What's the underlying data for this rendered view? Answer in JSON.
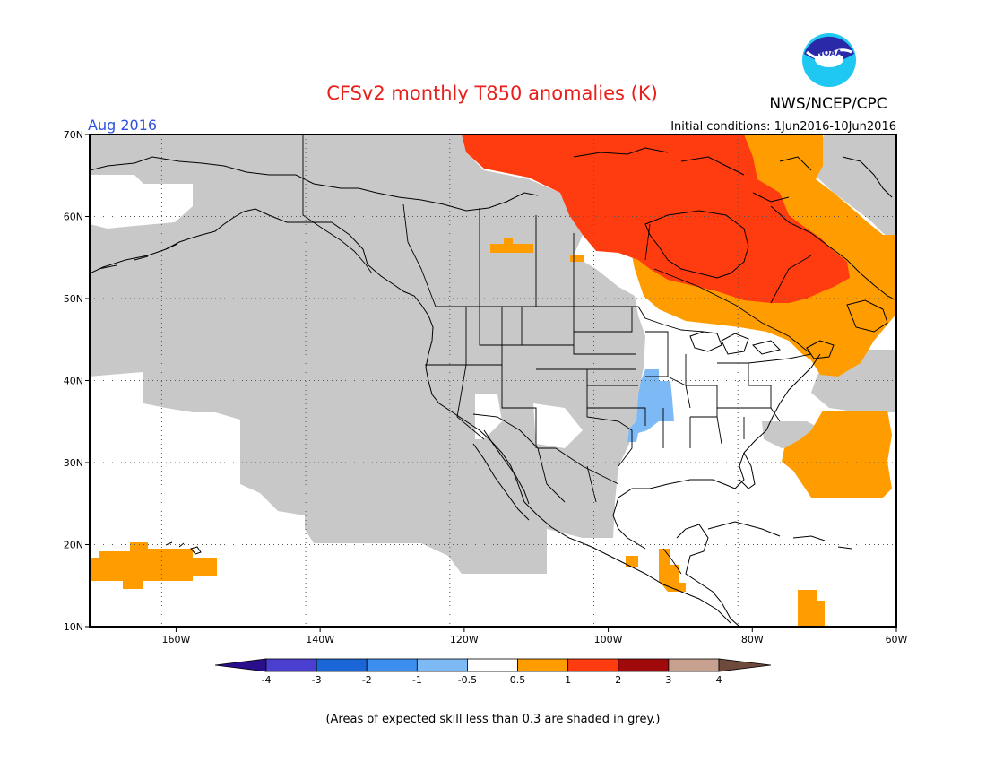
{
  "title": "CFSv2 monthly T850 anomalies (K)",
  "agency": "NWS/NCEP/CPC",
  "logo_text": "NOAA",
  "valid_month": "Aug 2016",
  "initial_conditions": "Initial conditions: 1Jun2016-10Jun2016",
  "footnote": "(Areas of expected skill less than 0.3 are shaded in grey.)",
  "colors": {
    "title": "#e8201c",
    "month": "#2f52e0",
    "grey_skill": "#c8c8c8",
    "anom_0_5_1": "#ff9d00",
    "anom_1_2": "#ff3c0f",
    "anom_neg_1_neg_0_5": "#7db9f5"
  },
  "map": {
    "lon_range": [
      -172,
      -60
    ],
    "lat_range": [
      10,
      70
    ],
    "lon_ticks": [
      {
        "lon": -160,
        "label": "160W"
      },
      {
        "lon": -140,
        "label": "140W"
      },
      {
        "lon": -120,
        "label": "120W"
      },
      {
        "lon": -100,
        "label": "100W"
      },
      {
        "lon": -80,
        "label": "80W"
      },
      {
        "lon": -60,
        "label": "60W"
      }
    ],
    "lat_ticks": [
      {
        "lat": 70,
        "label": "70N"
      },
      {
        "lat": 60,
        "label": "60N"
      },
      {
        "lat": 50,
        "label": "50N"
      },
      {
        "lat": 40,
        "label": "40N"
      },
      {
        "lat": 30,
        "label": "30N"
      },
      {
        "lat": 20,
        "label": "20N"
      },
      {
        "lat": 10,
        "label": "10N"
      }
    ]
  },
  "colorbar": [
    {
      "color": "#2a0f8c"
    },
    {
      "color": "#4a3fd0",
      "left_label": "-4"
    },
    {
      "color": "#1a66d6",
      "left_label": "-3"
    },
    {
      "color": "#3d8fef",
      "left_label": "-2"
    },
    {
      "color": "#7db9f5",
      "left_label": "-1"
    },
    {
      "color": "#ffffff",
      "left_label": "-0.5"
    },
    {
      "color": "#ff9d00",
      "left_label": "0.5"
    },
    {
      "color": "#ff3c0f",
      "left_label": "1"
    },
    {
      "color": "#a00a0a",
      "left_label": "2"
    },
    {
      "color": "#c8a090",
      "left_label": "3"
    },
    {
      "color": "#6e4a3c",
      "left_label": "4"
    }
  ]
}
